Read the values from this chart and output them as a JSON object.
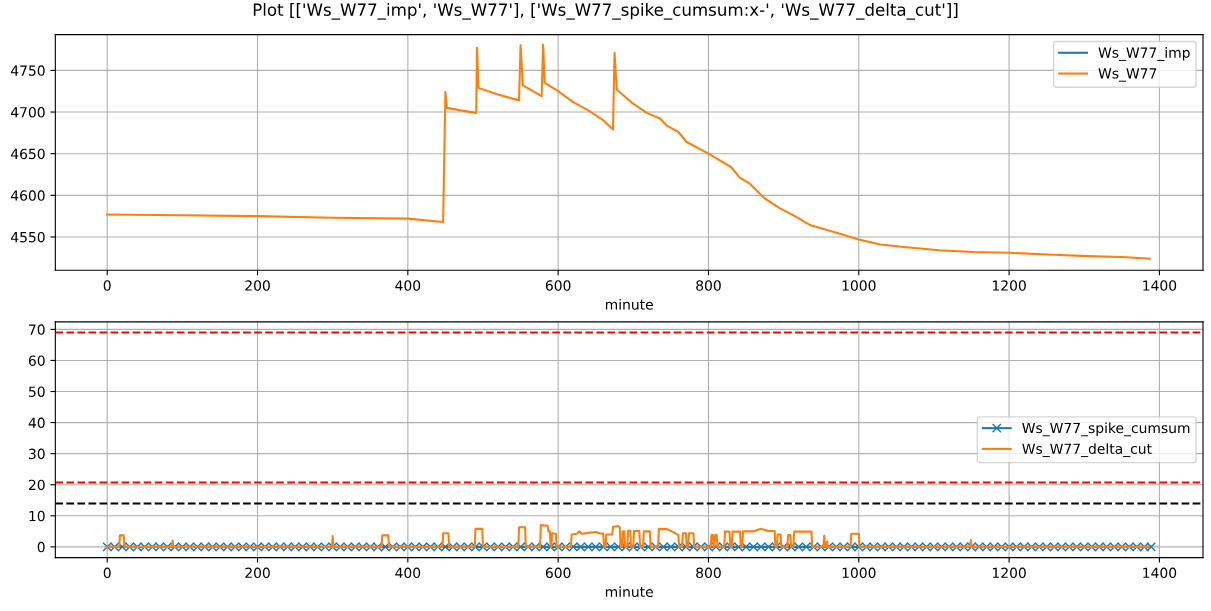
{
  "chart_data": [
    {
      "type": "line",
      "title": "Plot [['Ws_W77_imp', 'Ws_W77'], ['Ws_W77_spike_cumsum:x-', 'Ws_W77_delta_cut']]",
      "xlabel": "minute",
      "x": [
        0,
        100,
        200,
        300,
        400,
        447,
        450,
        452,
        470,
        491,
        492,
        494,
        520,
        548,
        550,
        553,
        578,
        580,
        582,
        600,
        620,
        640,
        659,
        673,
        675,
        678,
        697,
        718,
        736,
        744,
        760,
        771,
        800,
        830,
        842,
        855,
        874,
        894,
        915,
        936,
        967,
        1000,
        1029,
        1060,
        1107,
        1153,
        1200,
        1252,
        1304,
        1350,
        1387
      ],
      "series": [
        {
          "name": "Ws_W77_imp",
          "color": "#1f77b4",
          "values": [
            null,
            null,
            null,
            null,
            null,
            null,
            null,
            null,
            null,
            null,
            null,
            null,
            null,
            null,
            null,
            null,
            null,
            null,
            null,
            null,
            null,
            null,
            null,
            null,
            null,
            null,
            null,
            null,
            null,
            null,
            null,
            null,
            null,
            null,
            null,
            null,
            null,
            null,
            null,
            null,
            null,
            null,
            null,
            null,
            null,
            null,
            null,
            null,
            null,
            null,
            null
          ]
        },
        {
          "name": "Ws_W77",
          "color": "#ff7f0e",
          "values": [
            4577,
            4576,
            4575,
            4573,
            4572,
            4568,
            4724,
            4705,
            4702,
            4699,
            4777,
            4729,
            4721,
            4714,
            4780,
            4732,
            4719,
            4781,
            4735,
            4725,
            4712,
            4702,
            4691,
            4679,
            4771,
            4727,
            4712,
            4699,
            4692,
            4684,
            4676,
            4664,
            4650,
            4634,
            4621,
            4614,
            4597,
            4585,
            4575,
            4564,
            4556,
            4547,
            4541,
            4538,
            4534,
            4532,
            4531,
            4529,
            4527,
            4526,
            4524
          ]
        }
      ],
      "xlim": [
        -69,
        1458
      ],
      "xticks": [
        0,
        200,
        400,
        600,
        800,
        1000,
        1200,
        1400
      ],
      "ylim": [
        4510,
        4793
      ],
      "yticks": [
        4550,
        4600,
        4650,
        4700,
        4750
      ],
      "grid": true,
      "legend": "top right",
      "line_style": "solid"
    },
    {
      "type": "line",
      "xlabel": "minute",
      "series": [
        {
          "name": "Ws_W77_spike_cumsum",
          "color": "#1f77b4",
          "marker": "cross",
          "x": [
            0,
            10,
            20,
            30,
            40,
            50,
            60,
            70,
            80,
            90,
            100,
            110,
            120,
            130,
            140,
            150,
            160,
            170,
            180,
            190,
            200,
            210,
            220,
            230,
            240,
            250,
            260,
            270,
            280,
            290,
            300,
            310,
            320,
            330,
            340,
            350,
            360,
            370,
            380,
            390,
            400,
            410,
            420,
            430,
            440,
            450,
            460,
            470,
            480,
            490,
            500,
            510,
            520,
            530,
            540,
            550,
            560,
            570,
            580,
            590,
            600,
            610,
            620,
            630,
            640,
            650,
            660,
            670,
            680,
            690,
            700,
            710,
            720,
            730,
            740,
            750,
            760,
            770,
            780,
            790,
            800,
            810,
            820,
            830,
            840,
            850,
            860,
            870,
            880,
            890,
            900,
            910,
            920,
            930,
            940,
            950,
            960,
            970,
            980,
            990,
            1000,
            1010,
            1020,
            1030,
            1040,
            1050,
            1060,
            1070,
            1080,
            1090,
            1100,
            1110,
            1120,
            1130,
            1140,
            1150,
            1160,
            1170,
            1180,
            1190,
            1200,
            1210,
            1220,
            1230,
            1240,
            1250,
            1260,
            1270,
            1280,
            1290,
            1300,
            1310,
            1320,
            1330,
            1340,
            1350,
            1360,
            1370,
            1380,
            1389
          ],
          "values": [
            0,
            0,
            0,
            0,
            0,
            0,
            0,
            0,
            0,
            0,
            0,
            0,
            0,
            0,
            0,
            0,
            0,
            0,
            0,
            0,
            0,
            0,
            0,
            0,
            0,
            0,
            0,
            0,
            0,
            0,
            0,
            0,
            0,
            0,
            0,
            0,
            0,
            0,
            0,
            0,
            0,
            0,
            0,
            0,
            0,
            0,
            0,
            0,
            0,
            0,
            0,
            0,
            0,
            0,
            0,
            0,
            0,
            0,
            0,
            0,
            0,
            0,
            0,
            0,
            0,
            0,
            0,
            0,
            0,
            0,
            0,
            0,
            0,
            0,
            0,
            0,
            0,
            0,
            0,
            0,
            0,
            0,
            0,
            0,
            0,
            0,
            0,
            0,
            0,
            0,
            0,
            0,
            0,
            0,
            0,
            0,
            0,
            0,
            0,
            0,
            0,
            0,
            0,
            0,
            0,
            0,
            0,
            0,
            0,
            0,
            0,
            0,
            0,
            0,
            0,
            0,
            0,
            0,
            0,
            0,
            0,
            0,
            0,
            0,
            0,
            0,
            0,
            0,
            0,
            0,
            0,
            0,
            0,
            0,
            0,
            0,
            0,
            0,
            0,
            0
          ]
        },
        {
          "name": "Ws_W77_delta_cut",
          "color": "#ff7f0e",
          "x": [
            0,
            16,
            17,
            22,
            23,
            86,
            87,
            88,
            299,
            300,
            301,
            365,
            366,
            374,
            375,
            446,
            447,
            454,
            455,
            489,
            490,
            499,
            500,
            547,
            548,
            556,
            557,
            576,
            577,
            586,
            587,
            589,
            590,
            591,
            592,
            597,
            598,
            617,
            618,
            625,
            628,
            632,
            640,
            650,
            656,
            660,
            661,
            663,
            664,
            672,
            673,
            680,
            682,
            683,
            685,
            686,
            688,
            689,
            692,
            693,
            696,
            697,
            700,
            701,
            708,
            709,
            713,
            714,
            722,
            723,
            733,
            734,
            745,
            755,
            760,
            761,
            765,
            766,
            770,
            771,
            773,
            774,
            780,
            781,
            803,
            804,
            806,
            807,
            808,
            809,
            811,
            812,
            821,
            822,
            828,
            829,
            831,
            832,
            842,
            843,
            845,
            846,
            860,
            870,
            880,
            888,
            889,
            891,
            892,
            896,
            897,
            905,
            906,
            909,
            910,
            913,
            914,
            937,
            938,
            953,
            954,
            955,
            957,
            958,
            959,
            989,
            990,
            1000,
            1001,
            1148,
            1149,
            1150,
            1386
          ],
          "values": [
            0,
            0,
            3.7,
            3.7,
            0,
            0,
            2,
            0,
            0,
            3.5,
            0,
            0,
            3.7,
            3.7,
            0,
            0,
            4.4,
            4.4,
            0,
            0,
            5.8,
            5.8,
            0,
            0,
            6.3,
            6.3,
            0,
            0,
            7.0,
            6.8,
            5,
            5,
            0,
            0,
            4.4,
            4.2,
            0,
            0,
            4.0,
            4.2,
            5.0,
            4.2,
            4.5,
            4.8,
            4.3,
            4.3,
            0,
            0,
            4.0,
            4.0,
            6.5,
            6.7,
            6.3,
            0,
            0,
            5,
            5,
            0,
            0,
            5.2,
            5.2,
            0,
            0,
            5.1,
            5.1,
            0,
            0,
            5,
            5,
            0,
            0,
            5.8,
            5.7,
            4.5,
            3.8,
            0,
            0,
            4.4,
            4.4,
            0,
            0,
            4.4,
            4.4,
            0,
            0,
            3.8,
            3.8,
            0,
            0,
            3.8,
            3.8,
            0,
            0,
            4.9,
            4.9,
            0,
            0,
            4.9,
            4.9,
            0,
            0,
            5.0,
            5.0,
            5.8,
            5.1,
            5.1,
            0,
            0,
            4.0,
            4.0,
            0,
            0,
            3.8,
            3.8,
            0,
            0,
            4.9,
            4.9,
            0,
            0,
            3.6,
            0,
            0,
            1.7,
            0,
            0,
            4.2,
            4.2,
            0,
            0,
            2.2,
            0,
            0
          ]
        }
      ],
      "ref_lines": [
        {
          "axis": "y",
          "value": 69,
          "color": "#ff0000",
          "line_style": "dashed"
        },
        {
          "axis": "y",
          "value": 20.7,
          "color": "#ff0000",
          "line_style": "dashed"
        },
        {
          "axis": "y",
          "value": 13.95,
          "color": "#000000",
          "line_style": "dashed"
        }
      ],
      "xlim": [
        -69,
        1458
      ],
      "xticks": [
        0,
        200,
        400,
        600,
        800,
        1000,
        1200,
        1400
      ],
      "ylim": [
        -3.45,
        72.4
      ],
      "yticks": [
        0,
        10,
        20,
        30,
        40,
        50,
        60,
        70
      ],
      "grid": true,
      "legend": "right",
      "line_style": "solid"
    }
  ]
}
